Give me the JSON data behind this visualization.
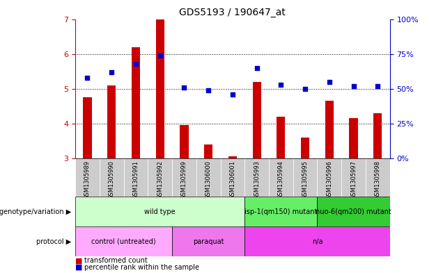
{
  "title": "GDS5193 / 190647_at",
  "samples": [
    "GSM1305989",
    "GSM1305990",
    "GSM1305991",
    "GSM1305992",
    "GSM1305999",
    "GSM1306000",
    "GSM1306001",
    "GSM1305993",
    "GSM1305994",
    "GSM1305995",
    "GSM1305996",
    "GSM1305997",
    "GSM1305998"
  ],
  "transformed_count": [
    4.75,
    5.1,
    6.2,
    7.0,
    3.95,
    3.4,
    3.05,
    5.2,
    4.2,
    3.6,
    4.65,
    4.15,
    4.3
  ],
  "percentile_rank": [
    58,
    62,
    68,
    74,
    51,
    49,
    46,
    65,
    53,
    50,
    55,
    52,
    52
  ],
  "ylim_left": [
    3,
    7
  ],
  "ylim_right": [
    0,
    100
  ],
  "yticks_left": [
    3,
    4,
    5,
    6,
    7
  ],
  "yticks_right": [
    0,
    25,
    50,
    75,
    100
  ],
  "bar_color": "#cc0000",
  "dot_color": "#0000cc",
  "bar_width": 0.35,
  "genotype_groups": [
    {
      "label": "wild type",
      "start": 0,
      "end": 7,
      "color": "#ccffcc"
    },
    {
      "label": "isp-1(qm150) mutant",
      "start": 7,
      "end": 10,
      "color": "#66ee66"
    },
    {
      "label": "nuo-6(qm200) mutant",
      "start": 10,
      "end": 13,
      "color": "#33cc33"
    }
  ],
  "protocol_groups": [
    {
      "label": "control (untreated)",
      "start": 0,
      "end": 4,
      "color": "#ffaaff"
    },
    {
      "label": "paraquat",
      "start": 4,
      "end": 7,
      "color": "#ee77ee"
    },
    {
      "label": "n/a",
      "start": 7,
      "end": 13,
      "color": "#ee44ee"
    }
  ],
  "axis_color_left": "#cc0000",
  "axis_color_right": "#0000cc",
  "tick_bg_color": "#cccccc",
  "legend_bar_label": "transformed count",
  "legend_dot_label": "percentile rank within the sample",
  "left_label_genotype": "genotype/variation",
  "left_label_protocol": "protocol"
}
